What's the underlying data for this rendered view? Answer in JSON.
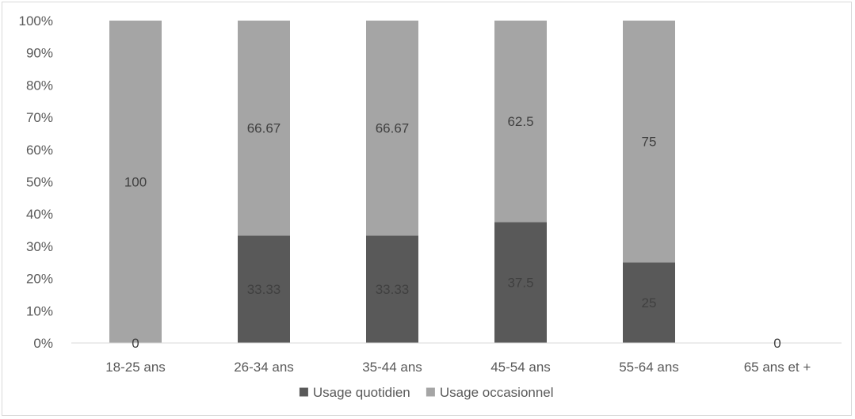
{
  "chart_data": {
    "type": "bar",
    "stacked": true,
    "percent_stacked": true,
    "categories": [
      "18-25 ans",
      "26-34 ans",
      "35-44 ans",
      "45-54 ans",
      "55-64 ans",
      "65 ans et +"
    ],
    "series": [
      {
        "name": "Usage quotidien",
        "color": "#595959",
        "values": [
          0,
          33.33,
          33.33,
          37.5,
          25,
          0
        ],
        "labels": [
          "0",
          "33.33",
          "33.33",
          "37.5",
          "25",
          "0"
        ]
      },
      {
        "name": "Usage occasionnel",
        "color": "#a5a5a5",
        "values": [
          100,
          66.67,
          66.67,
          62.5,
          75,
          0
        ],
        "labels": [
          "100",
          "66.67",
          "66.67",
          "62.5",
          "75",
          ""
        ]
      }
    ],
    "y_ticks": [
      "0%",
      "10%",
      "20%",
      "30%",
      "40%",
      "50%",
      "60%",
      "70%",
      "80%",
      "90%",
      "100%"
    ],
    "ylim": [
      0,
      100
    ],
    "grid": false,
    "legend_position": "bottom"
  }
}
